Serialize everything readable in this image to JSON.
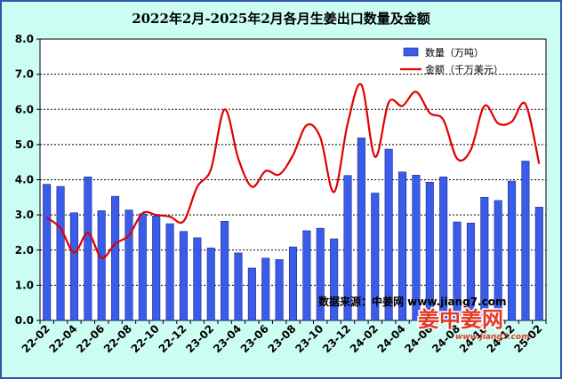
{
  "chart_data": {
    "type": "bar+line",
    "title": "2022年2月-2025年2月各月生姜出口数量及金额",
    "categories": [
      "22-02",
      "22-03",
      "22-04",
      "22-05",
      "22-06",
      "22-07",
      "22-08",
      "22-09",
      "22-10",
      "22-11",
      "22-12",
      "23-01",
      "23-02",
      "23-03",
      "23-04",
      "23-05",
      "23-06",
      "23-07",
      "23-08",
      "23-09",
      "23-10",
      "23-11",
      "23-12",
      "24-01",
      "24-02",
      "24-03",
      "24-04",
      "24-05",
      "24-06",
      "24-07",
      "24-08",
      "24-09",
      "24-10",
      "24-11",
      "24-12",
      "25-01",
      "25-02"
    ],
    "tick_labels": [
      "22-02",
      "22-04",
      "22-06",
      "22-08",
      "22-10",
      "22-12",
      "23-02",
      "23-04",
      "23-06",
      "23-08",
      "23-10",
      "23-12",
      "24-02",
      "24-04",
      "24-06",
      "24-08",
      "24-10",
      "24-12",
      "25-02"
    ],
    "series": [
      {
        "name": "数量（万吨）",
        "type": "bar",
        "color": "#3b5ce8",
        "values": [
          3.87,
          3.81,
          3.06,
          4.08,
          3.12,
          3.53,
          3.14,
          3.03,
          2.97,
          2.75,
          2.53,
          2.35,
          2.06,
          2.82,
          1.92,
          1.49,
          1.77,
          1.73,
          2.09,
          2.55,
          2.62,
          2.32,
          4.12,
          5.19,
          3.62,
          4.87,
          4.22,
          4.13,
          3.93,
          4.08,
          2.8,
          2.77,
          3.5,
          3.41,
          3.96,
          4.53,
          3.22
        ]
      },
      {
        "name": "金额（千万美元）",
        "type": "line",
        "color": "#e00000",
        "values": [
          2.92,
          2.62,
          1.93,
          2.49,
          1.78,
          2.18,
          2.42,
          3.05,
          3.0,
          2.95,
          2.82,
          3.8,
          4.3,
          6.0,
          4.6,
          3.8,
          4.25,
          4.15,
          4.7,
          5.55,
          5.2,
          3.65,
          5.6,
          6.7,
          4.65,
          6.2,
          6.1,
          6.5,
          5.9,
          5.7,
          4.6,
          4.85,
          6.1,
          5.6,
          5.65,
          6.15,
          4.45
        ]
      }
    ],
    "ylim": [
      0,
      8
    ],
    "yticks": [
      "0.0",
      "1.0",
      "2.0",
      "3.0",
      "4.0",
      "5.0",
      "6.0",
      "7.0",
      "8.0"
    ],
    "grid": "horizontal-dashed",
    "legend": "top-right",
    "source_text": "数据来源：中姜网 www.jiang7.com"
  },
  "logo": {
    "brand_text": "姜中姜网",
    "url_text": "www.jiang7.com"
  }
}
